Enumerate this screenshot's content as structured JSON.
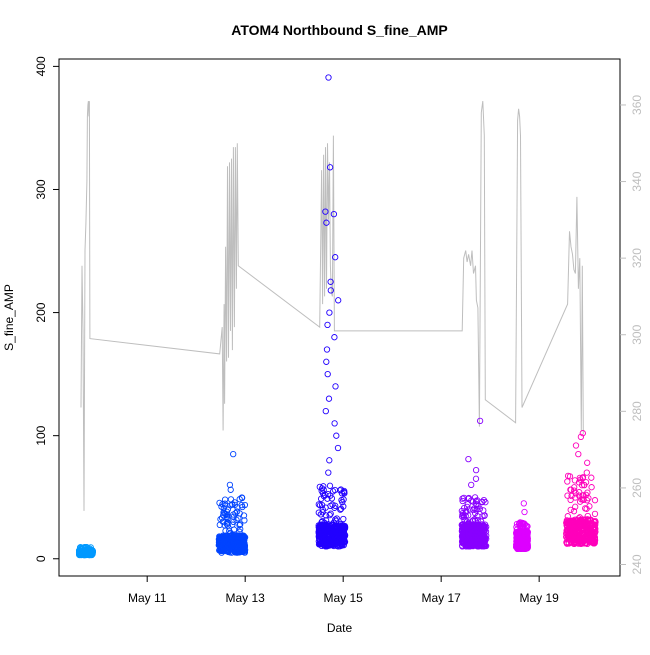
{
  "chart_data": {
    "type": "scatter",
    "title": "ATOM4 Northbound S_fine_AMP",
    "xlabel": "Date",
    "ylabel": "S_fine_AMP",
    "x_domain_days": [
      9.2,
      20.65
    ],
    "x_ticks": [
      {
        "day": 11,
        "label": "May 11"
      },
      {
        "day": 13,
        "label": "May 13"
      },
      {
        "day": 15,
        "label": "May 15"
      },
      {
        "day": 17,
        "label": "May 17"
      },
      {
        "day": 19,
        "label": "May 19"
      }
    ],
    "y_left": {
      "lim": [
        -14,
        406
      ],
      "ticks": [
        0,
        100,
        200,
        300,
        400
      ]
    },
    "y_right": {
      "lim": [
        237,
        372
      ],
      "ticks": [
        240,
        260,
        280,
        300,
        320,
        340,
        360
      ],
      "color": "#bebebe"
    },
    "bursts": [
      {
        "center": 9.75,
        "half_width": 0.14,
        "base": 3,
        "spread": 4,
        "tail_max": 10,
        "color": "#0099ff",
        "outliers": []
      },
      {
        "center": 12.73,
        "half_width": 0.27,
        "base": 5,
        "spread": 14,
        "tail_max": 50,
        "color": "#0044ff",
        "outliers": [
          60,
          56,
          85
        ]
      },
      {
        "center": 14.77,
        "half_width": 0.27,
        "base": 10,
        "spread": 18,
        "tail_max": 60,
        "color": "#2200ff",
        "outliers": [
          391,
          318,
          282,
          280,
          273,
          245,
          225,
          218,
          210,
          200,
          190,
          180,
          170,
          160,
          150,
          140,
          130,
          120,
          110,
          100,
          90,
          80,
          70
        ]
      },
      {
        "center": 17.67,
        "half_width": 0.25,
        "base": 10,
        "spread": 18,
        "tail_max": 50,
        "color": "#8800ff",
        "outliers": [
          112,
          81,
          72,
          65,
          60
        ]
      },
      {
        "center": 18.65,
        "half_width": 0.12,
        "base": 8,
        "spread": 14,
        "tail_max": 30,
        "color": "#dd00ff",
        "outliers": [
          45,
          38
        ]
      },
      {
        "center": 19.85,
        "half_width": 0.3,
        "base": 12,
        "spread": 20,
        "tail_max": 70,
        "color": "#ff00bb",
        "outliers": [
          102,
          99,
          92,
          85,
          78,
          70,
          62
        ]
      }
    ],
    "right_series": {
      "color": "#bebebe",
      "points": [
        [
          9.65,
          281
        ],
        [
          9.67,
          318
        ],
        [
          9.69,
          301
        ],
        [
          9.71,
          254
        ],
        [
          9.73,
          322
        ],
        [
          9.75,
          329
        ],
        [
          9.77,
          340
        ],
        [
          9.78,
          357
        ],
        [
          9.79,
          360
        ],
        [
          9.8,
          361
        ],
        [
          9.81,
          357
        ],
        [
          9.82,
          361
        ],
        [
          9.83,
          299
        ],
        [
          12.48,
          295
        ],
        [
          12.53,
          302
        ],
        [
          12.55,
          275
        ],
        [
          12.57,
          308
        ],
        [
          12.58,
          282
        ],
        [
          12.6,
          323
        ],
        [
          12.62,
          293
        ],
        [
          12.64,
          344
        ],
        [
          12.66,
          294
        ],
        [
          12.68,
          345
        ],
        [
          12.7,
          301
        ],
        [
          12.72,
          346
        ],
        [
          12.74,
          296
        ],
        [
          12.76,
          349
        ],
        [
          12.78,
          302
        ],
        [
          12.8,
          349
        ],
        [
          12.82,
          312
        ],
        [
          12.84,
          350
        ],
        [
          12.86,
          318
        ],
        [
          14.52,
          302
        ],
        [
          14.56,
          343
        ],
        [
          14.58,
          308
        ],
        [
          14.6,
          347
        ],
        [
          14.62,
          310
        ],
        [
          14.64,
          349
        ],
        [
          14.66,
          312
        ],
        [
          14.68,
          350
        ],
        [
          14.7,
          330
        ],
        [
          14.72,
          345
        ],
        [
          14.74,
          318
        ],
        [
          14.76,
          311
        ],
        [
          14.78,
          310
        ],
        [
          14.8,
          352
        ],
        [
          14.82,
          301
        ],
        [
          17.43,
          301
        ],
        [
          17.46,
          320
        ],
        [
          17.5,
          322
        ],
        [
          17.53,
          319
        ],
        [
          17.56,
          321
        ],
        [
          17.6,
          318
        ],
        [
          17.63,
          322
        ],
        [
          17.66,
          316
        ],
        [
          17.7,
          318
        ],
        [
          17.72,
          309
        ],
        [
          17.75,
          307
        ],
        [
          17.78,
          276
        ],
        [
          17.82,
          358
        ],
        [
          17.85,
          361
        ],
        [
          17.88,
          352
        ],
        [
          17.9,
          283
        ],
        [
          18.52,
          277
        ],
        [
          18.56,
          356
        ],
        [
          18.58,
          359
        ],
        [
          18.6,
          357
        ],
        [
          18.62,
          352
        ],
        [
          18.65,
          281
        ],
        [
          19.58,
          308
        ],
        [
          19.62,
          327
        ],
        [
          19.65,
          323
        ],
        [
          19.68,
          321
        ],
        [
          19.71,
          317
        ],
        [
          19.74,
          316
        ],
        [
          19.77,
          336
        ],
        [
          19.8,
          312
        ],
        [
          19.83,
          320
        ],
        [
          19.86,
          275
        ],
        [
          19.88,
          318
        ],
        [
          19.9,
          274
        ]
      ]
    }
  }
}
